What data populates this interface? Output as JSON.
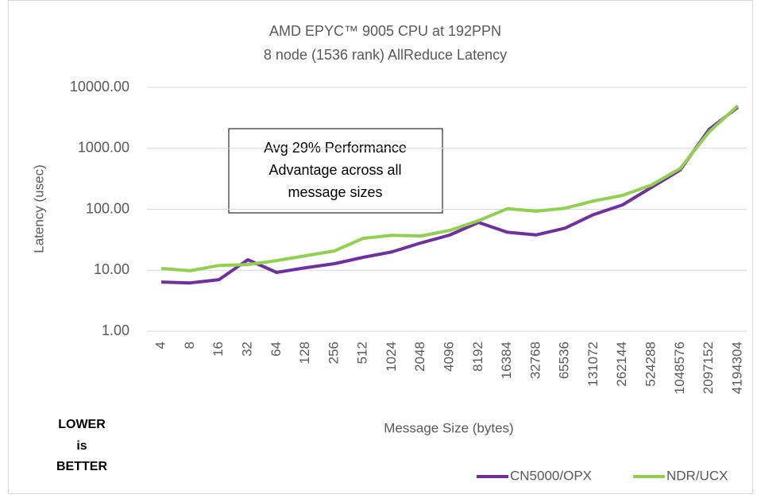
{
  "chart_data": {
    "type": "line",
    "title": [
      "AMD EPYC™ 9005 CPU at 192PPN",
      "8 node (1536 rank) AllReduce Latency"
    ],
    "xlabel": "Message Size (bytes)",
    "ylabel": "Latency (usec)",
    "categories": [
      "4",
      "8",
      "16",
      "32",
      "64",
      "128",
      "256",
      "512",
      "1024",
      "2048",
      "4096",
      "8192",
      "16384",
      "32768",
      "65536",
      "131072",
      "262144",
      "524288",
      "1048576",
      "2097152",
      "4194304"
    ],
    "series": [
      {
        "name": "CN5000/OPX",
        "color": "#7030a0",
        "values": [
          6.4,
          6.2,
          7.0,
          14.9,
          9.2,
          11,
          12.8,
          16.3,
          20,
          28,
          37.7,
          61,
          42,
          38,
          49,
          82,
          118,
          228,
          442,
          2040,
          4720
        ]
      },
      {
        "name": "NDR/UCX",
        "color": "#92d050",
        "values": [
          10.7,
          9.8,
          12,
          12.4,
          14.4,
          17.3,
          20.7,
          33.4,
          37.5,
          36.5,
          45,
          65,
          102,
          93,
          104,
          137,
          169,
          250,
          468,
          1860,
          5020
        ]
      }
    ],
    "ylim": [
      1,
      10000
    ],
    "yticks": [
      {
        "value": 1,
        "label": "1.00"
      },
      {
        "value": 10,
        "label": "10.00"
      },
      {
        "value": 100,
        "label": "100.00"
      },
      {
        "value": 1000,
        "label": "1000.00"
      },
      {
        "value": 10000,
        "label": "10000.00"
      }
    ],
    "log_scale": true,
    "grid": true,
    "legend": "bottom-right",
    "annotations": [
      [
        "Avg 29% Performance",
        "Advantage across all",
        "message sizes"
      ],
      [
        "LOWER",
        "is",
        "BETTER"
      ]
    ]
  }
}
